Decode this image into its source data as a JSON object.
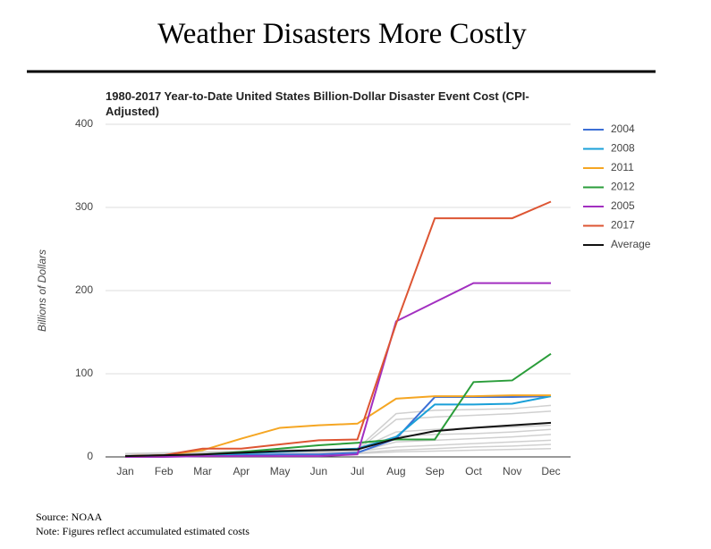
{
  "header": {
    "title": "Weather Disasters More Costly"
  },
  "chart_data": {
    "type": "line",
    "title": "1980-2017 Year-to-Date United States Billion-Dollar Disaster Event Cost (CPI-Adjusted)",
    "y_label": "Billions of Dollars",
    "categories": [
      "Jan",
      "Feb",
      "Mar",
      "Apr",
      "May",
      "Jun",
      "Jul",
      "Aug",
      "Sep",
      "Oct",
      "Nov",
      "Dec"
    ],
    "ylim": [
      0,
      400
    ],
    "yticks": [
      0,
      100,
      200,
      300,
      400
    ],
    "grid": true,
    "other_years": {
      "color": "#d0d0d0",
      "values": [
        [
          4,
          5,
          6,
          7,
          8,
          9,
          10,
          52,
          56,
          57,
          58,
          62
        ],
        [
          2,
          3,
          4,
          5,
          6,
          7,
          8,
          45,
          48,
          50,
          52,
          55
        ],
        [
          1,
          2,
          3,
          4,
          6,
          7,
          9,
          30,
          33,
          35,
          36,
          38
        ],
        [
          3,
          4,
          5,
          6,
          7,
          8,
          9,
          25,
          27,
          28,
          30,
          33
        ],
        [
          1,
          1,
          2,
          3,
          4,
          5,
          6,
          18,
          20,
          22,
          24,
          27
        ],
        [
          2,
          2,
          3,
          4,
          5,
          6,
          7,
          12,
          14,
          16,
          18,
          20
        ],
        [
          0,
          1,
          1,
          2,
          3,
          4,
          5,
          8,
          10,
          12,
          13,
          15
        ],
        [
          1,
          1,
          2,
          2,
          3,
          3,
          4,
          6,
          7,
          8,
          9,
          10
        ]
      ]
    },
    "series": [
      {
        "name": "2004",
        "color": "#3c6fd6",
        "values": [
          1,
          1,
          1,
          2,
          3,
          3,
          5,
          22,
          72,
          72,
          72,
          73
        ]
      },
      {
        "name": "2008",
        "color": "#1aa0d8",
        "values": [
          1,
          1,
          2,
          4,
          6,
          8,
          10,
          24,
          63,
          63,
          64,
          73
        ]
      },
      {
        "name": "2011",
        "color": "#f5a623",
        "values": [
          1,
          2,
          8,
          22,
          35,
          38,
          40,
          70,
          73,
          73,
          74,
          74
        ]
      },
      {
        "name": "2012",
        "color": "#2a9d3a",
        "values": [
          1,
          1,
          3,
          6,
          10,
          14,
          17,
          21,
          21,
          90,
          92,
          124
        ]
      },
      {
        "name": "2005",
        "color": "#a22fc0",
        "values": [
          0,
          0,
          1,
          1,
          1,
          1,
          3,
          163,
          186,
          209,
          209,
          209
        ]
      },
      {
        "name": "2017",
        "color": "#dd5533",
        "values": [
          1,
          2,
          10,
          10,
          15,
          20,
          21,
          160,
          287,
          287,
          287,
          307
        ]
      },
      {
        "name": "Average",
        "color": "#111111",
        "values": [
          1,
          2,
          3,
          5,
          7,
          8,
          9,
          22,
          31,
          35,
          38,
          41
        ]
      }
    ]
  },
  "footer": {
    "source": "Source: NOAA",
    "note": "Note: Figures reflect accumulated estimated costs"
  }
}
